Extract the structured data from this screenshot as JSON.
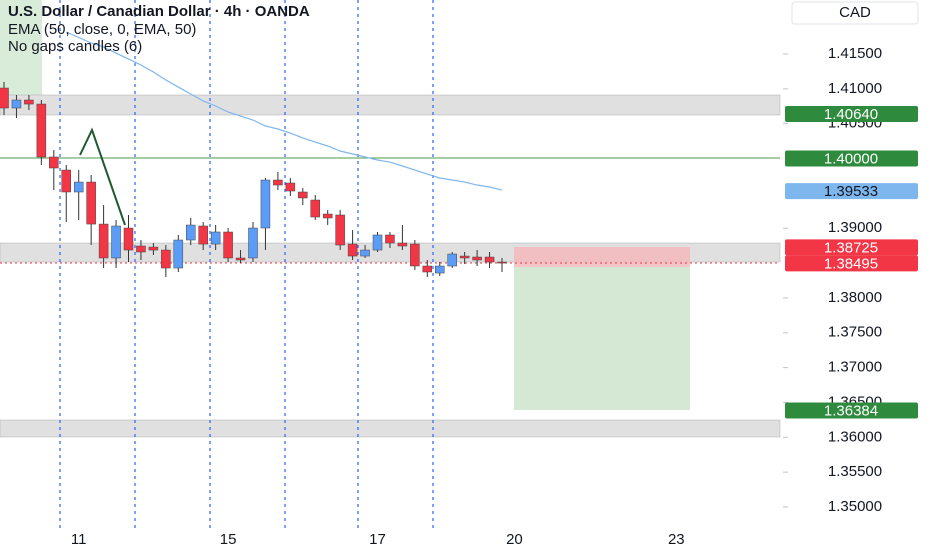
{
  "chart_data": {
    "type": "candlestick",
    "title": "U.S. Dollar / Canadian Dollar · 4h · OANDA",
    "indicator": "EMA (50, close, 0, EMA, 50)",
    "subtitle": "No gaps candles (6)",
    "currency": "CAD",
    "categories": [
      null,
      null,
      null,
      null,
      null,
      null,
      "11",
      null,
      null,
      null,
      null,
      null,
      null,
      null,
      null,
      null,
      null,
      null,
      "15",
      null,
      null,
      null,
      null,
      null,
      null,
      null,
      null,
      null,
      null,
      null,
      "17",
      null,
      null,
      null,
      null,
      null,
      null,
      null,
      null,
      null,
      null,
      "20",
      null,
      null,
      null,
      null,
      null,
      null,
      null,
      null,
      null,
      null,
      null,
      null,
      "23"
    ],
    "open": [
      1.41012,
      1.40725,
      1.4084,
      1.40782,
      1.40022,
      1.39835,
      1.3952,
      1.39663,
      1.3906,
      1.38573,
      1.39003,
      1.38745,
      1.3873,
      1.38687,
      1.38429,
      1.38831,
      1.39032,
      1.38773,
      1.38946,
      1.38573,
      1.38573,
      1.39003,
      1.39692,
      1.39649,
      1.3952,
      1.39405,
      1.39204,
      1.3919,
      1.38773,
      1.38601,
      1.38687,
      1.38903,
      1.38788,
      1.38773,
      1.38458,
      1.38357,
      1.38458,
      1.38601,
      1.38587,
      1.38587,
      1.38515,
      null,
      null,
      null,
      null,
      null,
      null,
      null,
      null,
      null,
      null,
      null,
      null,
      null,
      null
    ],
    "high": [
      1.41098,
      1.40912,
      1.40912,
      1.4084,
      1.40122,
      1.39907,
      1.39835,
      1.39764,
      1.39333,
      1.39118,
      1.3919,
      1.38831,
      1.38788,
      1.38759,
      1.38903,
      1.39147,
      1.39089,
      1.39046,
      1.39003,
      1.38687,
      1.39089,
      1.39721,
      1.39807,
      1.39721,
      1.39577,
      1.39477,
      1.39261,
      1.39261,
      1.38974,
      1.38759,
      1.38946,
      1.38946,
      1.39046,
      1.38831,
      1.38544,
      1.38515,
      1.38659,
      1.38659,
      1.38687,
      1.38659,
      1.38573,
      null,
      null,
      null,
      null,
      null,
      null,
      null,
      null,
      null,
      null,
      null,
      null,
      null,
      null
    ],
    "low": [
      1.40625,
      1.40582,
      1.40696,
      1.39907,
      1.39548,
      1.39089,
      1.39118,
      1.38759,
      1.38429,
      1.38429,
      1.38515,
      1.38544,
      1.38616,
      1.383,
      1.38372,
      1.38759,
      1.38687,
      1.38687,
      1.38515,
      1.38501,
      1.38515,
      1.38687,
      1.39548,
      1.39462,
      1.39333,
      1.39118,
      1.39046,
      1.38687,
      1.38544,
      1.38573,
      1.38659,
      1.38716,
      1.38687,
      1.384,
      1.383,
      1.38314,
      1.38429,
      1.38486,
      1.38458,
      1.38429,
      1.38372,
      null,
      null,
      null,
      null,
      null,
      null,
      null,
      null,
      null,
      null,
      null,
      null,
      null,
      null
    ],
    "close": [
      1.40725,
      1.4084,
      1.40782,
      1.40022,
      1.39864,
      1.3952,
      1.39663,
      1.3906,
      1.38573,
      1.39032,
      1.38687,
      1.38659,
      1.38687,
      1.38429,
      1.38831,
      1.39046,
      1.38773,
      1.38946,
      1.38573,
      1.38544,
      1.39003,
      1.39692,
      1.3962,
      1.39534,
      1.39434,
      1.39161,
      1.39147,
      1.38759,
      1.38601,
      1.38687,
      1.38903,
      1.38788,
      1.38745,
      1.38458,
      1.38372,
      1.38458,
      1.3863,
      1.38573,
      1.38544,
      1.38515,
      1.38501,
      null,
      null,
      null,
      null,
      null,
      null,
      null,
      null,
      null,
      null,
      null,
      null,
      null,
      null
    ],
    "up_color": "#5b9cf6",
    "down_color": "#f23645",
    "ema": {
      "color": "#7eb6ee",
      "values": [
        null,
        null,
        null,
        null,
        null,
        1.41816,
        1.41737,
        1.41658,
        1.416,
        1.41514,
        1.41428,
        1.41342,
        1.41242,
        1.41127,
        1.41026,
        1.40926,
        1.40826,
        1.40754,
        1.40668,
        1.4061,
        1.40553,
        1.40467,
        1.40424,
        1.40366,
        1.40295,
        1.40237,
        1.4018,
        1.40108,
        1.40065,
        1.40022,
        1.39979,
        1.3995,
        1.39893,
        1.39835,
        1.39778,
        1.39721,
        1.39692,
        1.39663,
        1.3962,
        1.39592,
        1.39548,
        null,
        null,
        null,
        null,
        null,
        null,
        null,
        null,
        null,
        null,
        null,
        null,
        null,
        null
      ]
    },
    "ylim": [
      1.34383,
      1.42275
    ],
    "yticks": [
      {
        "value": 1.415,
        "label": "1.41500"
      },
      {
        "value": 1.41,
        "label": "1.41000"
      },
      {
        "value": 1.405,
        "label": "1.40500"
      },
      {
        "value": 1.39,
        "label": "1.39000"
      },
      {
        "value": 1.38,
        "label": "1.38000"
      },
      {
        "value": 1.375,
        "label": "1.37500"
      },
      {
        "value": 1.37,
        "label": "1.37000"
      },
      {
        "value": 1.365,
        "label": "1.36500"
      },
      {
        "value": 1.36,
        "label": "1.36000"
      },
      {
        "value": 1.355,
        "label": "1.35500"
      },
      {
        "value": 1.35,
        "label": "1.35000"
      }
    ],
    "price_tags": [
      {
        "value": 1.4064,
        "label": "1.40640",
        "color": "#2e8b3e"
      },
      {
        "value": 1.4,
        "label": "1.40000",
        "color": "#2e8b3e"
      },
      {
        "value": 1.39533,
        "label": "1.39533",
        "color": "#7eb6ee"
      },
      {
        "value": 1.38725,
        "label": "1.38725",
        "color": "#f23645"
      },
      {
        "value": 1.38495,
        "label": "1.38495",
        "color": "#f23645"
      },
      {
        "value": 1.36384,
        "label": "1.36384",
        "color": "#2e8b3e"
      }
    ]
  }
}
